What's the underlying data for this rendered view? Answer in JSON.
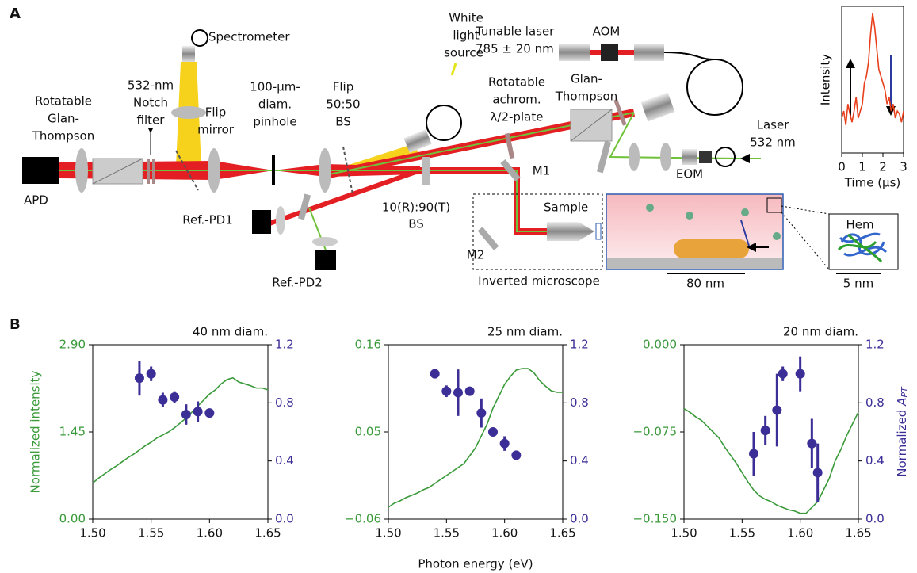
{
  "panel_a": {
    "label": "A",
    "spectrometer": "Spectrometer",
    "white_light": [
      "White",
      "light",
      "source"
    ],
    "tunable_laser": [
      "Tunable laser",
      "785 ± 20 nm"
    ],
    "aom": "AOM",
    "glan_left": [
      "Rotatable",
      "Glan-",
      "Thompson"
    ],
    "notch": [
      "532-nm",
      "Notch",
      "filter"
    ],
    "flip_mirror": [
      "Flip",
      "mirror"
    ],
    "pinhole": [
      "100-μm-",
      "diam.",
      "pinhole"
    ],
    "flip_bs": [
      "Flip",
      "50:50",
      "BS"
    ],
    "waveplate": [
      "Rotatable",
      "achrom.",
      "λ/2-plate"
    ],
    "glan_right": [
      "Glan-",
      "Thompson"
    ],
    "laser532": [
      "Laser",
      "532 nm"
    ],
    "eom": "EOM",
    "m1": "M1",
    "m2": "M2",
    "apd": "APD",
    "ref_pd1": "Ref.-PD1",
    "ref_pd2": "Ref.-PD2",
    "bs": [
      "10(R):90(T)",
      "BS"
    ],
    "sample": "Sample",
    "microscope": "Inverted microscope",
    "scale_80": "80 nm",
    "hem": "Hem",
    "scale_5": "5 nm"
  },
  "panel_b": {
    "label": "B",
    "xlabel": "Photon energy (eV)"
  },
  "chart_data": [
    {
      "type": "line",
      "title": "40 nm diam.",
      "ylabel": "Normalized intensity",
      "x": [
        1.5,
        1.505,
        1.51,
        1.515,
        1.52,
        1.525,
        1.53,
        1.535,
        1.54,
        1.545,
        1.55,
        1.555,
        1.56,
        1.565,
        1.57,
        1.575,
        1.58,
        1.585,
        1.59,
        1.595,
        1.6,
        1.605,
        1.61,
        1.615,
        1.62,
        1.625,
        1.63,
        1.635,
        1.64,
        1.645,
        1.65
      ],
      "xlim": [
        1.5,
        1.65
      ],
      "xticks": [
        {
          "value": 1.5,
          "label": "1.50"
        },
        1.55,
        {
          "value": 1.6,
          "label": "1.60"
        },
        1.65
      ],
      "ylim": [
        0,
        2.9
      ],
      "yticks": [
        {
          "value": 0,
          "label": "0.00"
        },
        1.45,
        {
          "value": 2.9,
          "label": "2.90"
        }
      ],
      "y2lim": [
        0,
        1.2
      ],
      "y2ticks": [
        {
          "value": 0,
          "label": "0.0"
        },
        0.4,
        0.8,
        1.2
      ],
      "series": [
        {
          "color": "#3a9a3a",
          "values": [
            0.6,
            0.68,
            0.75,
            0.82,
            0.88,
            0.95,
            1.02,
            1.08,
            1.15,
            1.22,
            1.28,
            1.35,
            1.4,
            1.45,
            1.52,
            1.6,
            1.68,
            1.78,
            1.88,
            1.98,
            2.08,
            2.15,
            2.25,
            2.32,
            2.35,
            2.28,
            2.25,
            2.22,
            2.18,
            2.18,
            2.15
          ]
        },
        {
          "type": "scatter",
          "axis": "y2",
          "color": "#3b2e96",
          "x": [
            1.54,
            1.55,
            1.56,
            1.57,
            1.58,
            1.59,
            1.6
          ],
          "values": [
            0.97,
            1.0,
            0.82,
            0.84,
            0.72,
            0.74,
            0.73
          ],
          "errors": [
            0.12,
            0.05,
            0.05,
            0.04,
            0.07,
            0.07,
            null
          ]
        }
      ]
    },
    {
      "type": "line",
      "title": "25 nm diam.",
      "x": [
        1.5,
        1.505,
        1.51,
        1.515,
        1.52,
        1.525,
        1.53,
        1.535,
        1.54,
        1.545,
        1.55,
        1.555,
        1.56,
        1.565,
        1.57,
        1.575,
        1.58,
        1.585,
        1.59,
        1.595,
        1.6,
        1.605,
        1.61,
        1.615,
        1.62,
        1.625,
        1.63,
        1.635,
        1.64,
        1.645,
        1.65
      ],
      "xlim": [
        1.5,
        1.65
      ],
      "xticks": [
        {
          "value": 1.5,
          "label": "1.50"
        },
        1.55,
        {
          "value": 1.6,
          "label": "1.60"
        },
        1.65
      ],
      "ylim": [
        -0.06,
        0.16
      ],
      "yticks": [
        {
          "value": -0.06,
          "label": "−0.06"
        },
        0.05,
        0.16
      ],
      "y2lim": [
        0,
        1.2
      ],
      "y2ticks": [
        {
          "value": 0,
          "label": "0.0"
        },
        0.4,
        0.8,
        1.2
      ],
      "series": [
        {
          "color": "#3a9a3a",
          "values": [
            -0.045,
            -0.04,
            -0.037,
            -0.033,
            -0.03,
            -0.027,
            -0.023,
            -0.02,
            -0.015,
            -0.01,
            -0.005,
            0,
            0.005,
            0.01,
            0.02,
            0.03,
            0.045,
            0.06,
            0.08,
            0.095,
            0.11,
            0.12,
            0.128,
            0.13,
            0.13,
            0.125,
            0.115,
            0.108,
            0.102,
            0.1,
            0.1
          ]
        },
        {
          "type": "scatter",
          "axis": "y2",
          "color": "#3b2e96",
          "x": [
            1.54,
            1.55,
            1.56,
            1.57,
            1.58,
            1.59,
            1.6,
            1.61
          ],
          "values": [
            1.0,
            0.88,
            0.87,
            0.88,
            0.73,
            0.6,
            0.52,
            0.44
          ],
          "errors": [
            null,
            0.04,
            0.16,
            null,
            0.1,
            null,
            0.05,
            null
          ]
        }
      ]
    },
    {
      "type": "line",
      "title": "20 nm diam.",
      "y2label": {
        "text": "Normalized",
        "symbol": "A",
        "subscript": "PT"
      },
      "x": [
        1.5,
        1.505,
        1.51,
        1.515,
        1.52,
        1.525,
        1.53,
        1.535,
        1.54,
        1.545,
        1.55,
        1.555,
        1.56,
        1.565,
        1.57,
        1.575,
        1.58,
        1.585,
        1.59,
        1.595,
        1.6,
        1.605,
        1.61,
        1.615,
        1.62,
        1.625,
        1.63,
        1.635,
        1.64,
        1.645,
        1.65
      ],
      "xlim": [
        1.5,
        1.65
      ],
      "xticks": [
        {
          "value": 1.5,
          "label": "1.50"
        },
        1.55,
        {
          "value": 1.6,
          "label": "1.60"
        },
        1.65
      ],
      "ylim": [
        -0.15,
        0
      ],
      "yticks": [
        {
          "value": -0.15,
          "label": "−0.150"
        },
        {
          "value": -0.075,
          "label": "−0.075"
        },
        {
          "value": 0,
          "label": "0.000"
        }
      ],
      "y2lim": [
        0,
        1.2
      ],
      "y2ticks": [
        {
          "value": 0,
          "label": "0.0"
        },
        0.4,
        0.8,
        1.2
      ],
      "series": [
        {
          "color": "#3a9a3a",
          "values": [
            -0.055,
            -0.058,
            -0.062,
            -0.065,
            -0.07,
            -0.075,
            -0.08,
            -0.088,
            -0.095,
            -0.102,
            -0.11,
            -0.118,
            -0.125,
            -0.13,
            -0.133,
            -0.135,
            -0.138,
            -0.14,
            -0.142,
            -0.143,
            -0.145,
            -0.145,
            -0.14,
            -0.135,
            -0.125,
            -0.115,
            -0.1,
            -0.09,
            -0.078,
            -0.068,
            -0.058
          ]
        },
        {
          "type": "scatter",
          "axis": "y2",
          "color": "#3b2e96",
          "x": [
            1.56,
            1.57,
            1.58,
            1.585,
            1.6,
            1.61,
            1.615
          ],
          "values": [
            0.45,
            0.61,
            0.75,
            1.0,
            1.0,
            0.52,
            0.32
          ],
          "errors": [
            0.15,
            0.1,
            0.25,
            0.05,
            0.12,
            0.17,
            0.2
          ]
        }
      ]
    },
    {
      "type": "line",
      "xlabel": "Time (μs)",
      "ylabel": "Intensity",
      "x": [
        0,
        0.1,
        0.2,
        0.3,
        0.4,
        0.5,
        0.6,
        0.7,
        0.8,
        0.9,
        1,
        1.1,
        1.2,
        1.3,
        1.4,
        1.5,
        1.6,
        1.7,
        1.8,
        1.9,
        2,
        2.1,
        2.2,
        2.3,
        2.4,
        2.5,
        2.6,
        2.7,
        2.8,
        2.9,
        3
      ],
      "xlim": [
        0,
        3
      ],
      "xticks": [
        0,
        1,
        2,
        3
      ],
      "ylim": [
        0,
        1.05
      ],
      "series": [
        {
          "color": "#e8401c",
          "values": [
            0.25,
            0.3,
            0.2,
            0.35,
            0.28,
            0.22,
            0.3,
            0.4,
            0.25,
            0.3,
            0.35,
            0.5,
            0.55,
            0.65,
            0.85,
            1.0,
            0.9,
            0.75,
            0.6,
            0.55,
            0.5,
            0.45,
            0.35,
            0.4,
            0.3,
            0.35,
            0.25,
            0.3,
            0.28,
            0.22,
            0.3
          ]
        }
      ]
    }
  ]
}
